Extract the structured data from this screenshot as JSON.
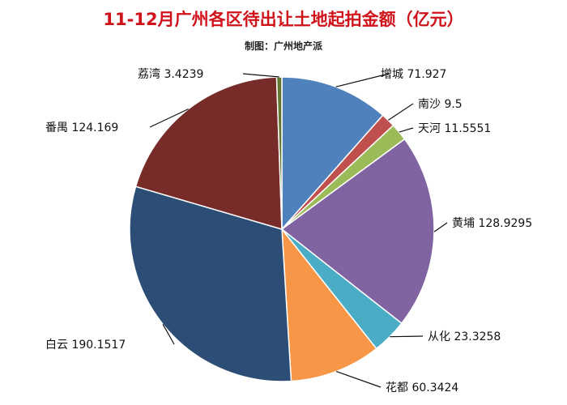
{
  "chart_data": {
    "type": "pie",
    "title": "11-12月广州各区待出让土地起拍金额（亿元）",
    "subtitle": "制图：广州地产派",
    "slices": [
      {
        "name": "增城",
        "value": 71.927,
        "label": "增城 71.927",
        "color": "#4f81bd"
      },
      {
        "name": "南沙",
        "value": 9.5,
        "label": "南沙 9.5",
        "color": "#c0504d"
      },
      {
        "name": "天河",
        "value": 11.5551,
        "label": "天河 11.5551",
        "color": "#9bbb59"
      },
      {
        "name": "黄埔",
        "value": 128.9295,
        "label": "黄埔 128.9295",
        "color": "#8064a2"
      },
      {
        "name": "从化",
        "value": 23.3258,
        "label": "从化 23.3258",
        "color": "#4bacc6"
      },
      {
        "name": "花都",
        "value": 60.3424,
        "label": "花都 60.3424",
        "color": "#f79646"
      },
      {
        "name": "白云",
        "value": 190.1517,
        "label": "白云 190.1517",
        "color": "#2c4d75"
      },
      {
        "name": "番禺",
        "value": 124.169,
        "label": "番禺 124.169",
        "color": "#772c2a"
      },
      {
        "name": "荔湾",
        "value": 3.4239,
        "label": "荔湾 3.4239",
        "color": "#5f7530"
      }
    ]
  }
}
